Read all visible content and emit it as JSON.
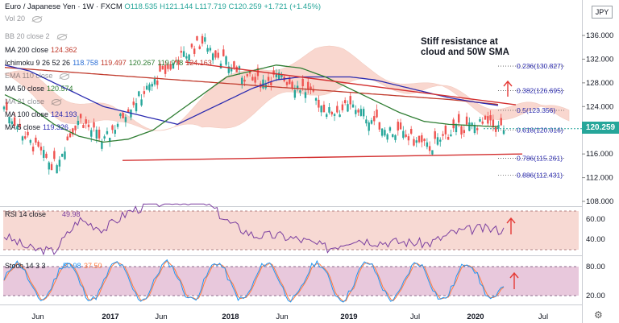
{
  "header": {
    "symbol": "Euro / Japanese Yen",
    "interval": "1W",
    "exchange": "FXCM",
    "open": "O118.535",
    "high": "H121.144",
    "low": "L117.719",
    "close": "C120.259",
    "change": "+1.721 (+1.45%)",
    "currency": "JPY"
  },
  "legend": [
    {
      "label": "Vol 20",
      "value": "",
      "faded": true,
      "eye": true
    },
    {
      "label": "BB 20 close 2",
      "value": "",
      "faded": true,
      "eye": true
    },
    {
      "label": "MA 200 close",
      "value": "124.362",
      "color": "#c0392b"
    },
    {
      "label": "Ichimoku 9 26 52 26",
      "value": "",
      "ichimoku": [
        "118.758",
        "119.497",
        "120.267",
        "119.978",
        "124.163"
      ]
    },
    {
      "label": "EMA 110 close",
      "value": "",
      "faded": true,
      "eye": true
    },
    {
      "label": "MA 50 close",
      "value": "120.574",
      "color": "#2e7d32"
    },
    {
      "label": "MA 21 close",
      "value": "",
      "faded": true,
      "eye": true
    },
    {
      "label": "MA 100 close",
      "value": "124.193",
      "color": "#2b2bb0"
    },
    {
      "label": "MA 5 close",
      "value": "119.326",
      "color": "#2b2bb0"
    }
  ],
  "annotation": "Stiff resistance at\ncloud and 50W SMA",
  "last_price": "120.259",
  "price_axis": [
    "136.000",
    "132.000",
    "128.000",
    "124.000",
    "120.000",
    "116.000",
    "112.000",
    "108.000"
  ],
  "fib_levels": [
    {
      "label": "0.236(130.827)",
      "value": 130.827
    },
    {
      "label": "0.382(126.695)",
      "value": 126.695
    },
    {
      "label": "0.5(123.356)",
      "value": 123.356
    },
    {
      "label": "0.618(120.016)",
      "value": 120.016
    },
    {
      "label": "0.786(115.261)",
      "value": 115.261
    },
    {
      "label": "0.886(112.431)",
      "value": 112.431
    }
  ],
  "rsi": {
    "label": "RSI 14 close",
    "value": "49.98",
    "axis": [
      "60.00",
      "40.00"
    ]
  },
  "stoch": {
    "label": "Stoch 14 3 3",
    "k": "50.98",
    "d": "37.50",
    "axis": [
      "80.00",
      "20.00"
    ]
  },
  "time_axis": [
    "Jun",
    "2017",
    "Jun",
    "2018",
    "Jun",
    "2019",
    "Jul",
    "2020",
    "Jul"
  ],
  "colors": {
    "up": "#26a69a",
    "down": "#ef5350",
    "ma50": "#2e7d32",
    "ma100": "#2b2bb0",
    "ma200": "#c0392b",
    "arrow": "#e53935"
  },
  "chart_data": {
    "type": "line",
    "title": "Euro / Japanese Yen, 1W, FXCM",
    "x": [
      "2016-04",
      "2016-06",
      "2016-09",
      "2016-12",
      "2017-03",
      "2017-06",
      "2017-09",
      "2017-12",
      "2018-02",
      "2018-04",
      "2018-06",
      "2018-09",
      "2018-11",
      "2019-01",
      "2019-03",
      "2019-05",
      "2019-07",
      "2019-09",
      "2019-11",
      "2020-01",
      "2020-03"
    ],
    "series": [
      {
        "name": "Close",
        "values": [
          124,
          118,
          114,
          122,
          118,
          124,
          128,
          132,
          135,
          131,
          128,
          129,
          127,
          123,
          124,
          121,
          119,
          117,
          120,
          121,
          120.259
        ]
      },
      {
        "name": "MA 50 close",
        "values": [
          126,
          124,
          121,
          119,
          118,
          118.5,
          120,
          123,
          126,
          129,
          130,
          131,
          130.5,
          129,
          127,
          125,
          123,
          121.5,
          121,
          120.8,
          120.574
        ]
      },
      {
        "name": "MA 100 close",
        "values": [
          131,
          130,
          128,
          126,
          124,
          123,
          122,
          121,
          123,
          125,
          127,
          128.5,
          129,
          129,
          129,
          128.5,
          127.5,
          126.5,
          125.5,
          124.8,
          124.193
        ]
      },
      {
        "name": "MA 200 close",
        "values": [
          130.6,
          130.3,
          130,
          129.7,
          129.4,
          129.1,
          128.8,
          128.5,
          128.2,
          127.9,
          127.6,
          127.3,
          127,
          126.7,
          126.4,
          126.1,
          125.8,
          125.5,
          125.2,
          124.8,
          124.362
        ]
      }
    ],
    "ylim": [
      108,
      138
    ]
  }
}
